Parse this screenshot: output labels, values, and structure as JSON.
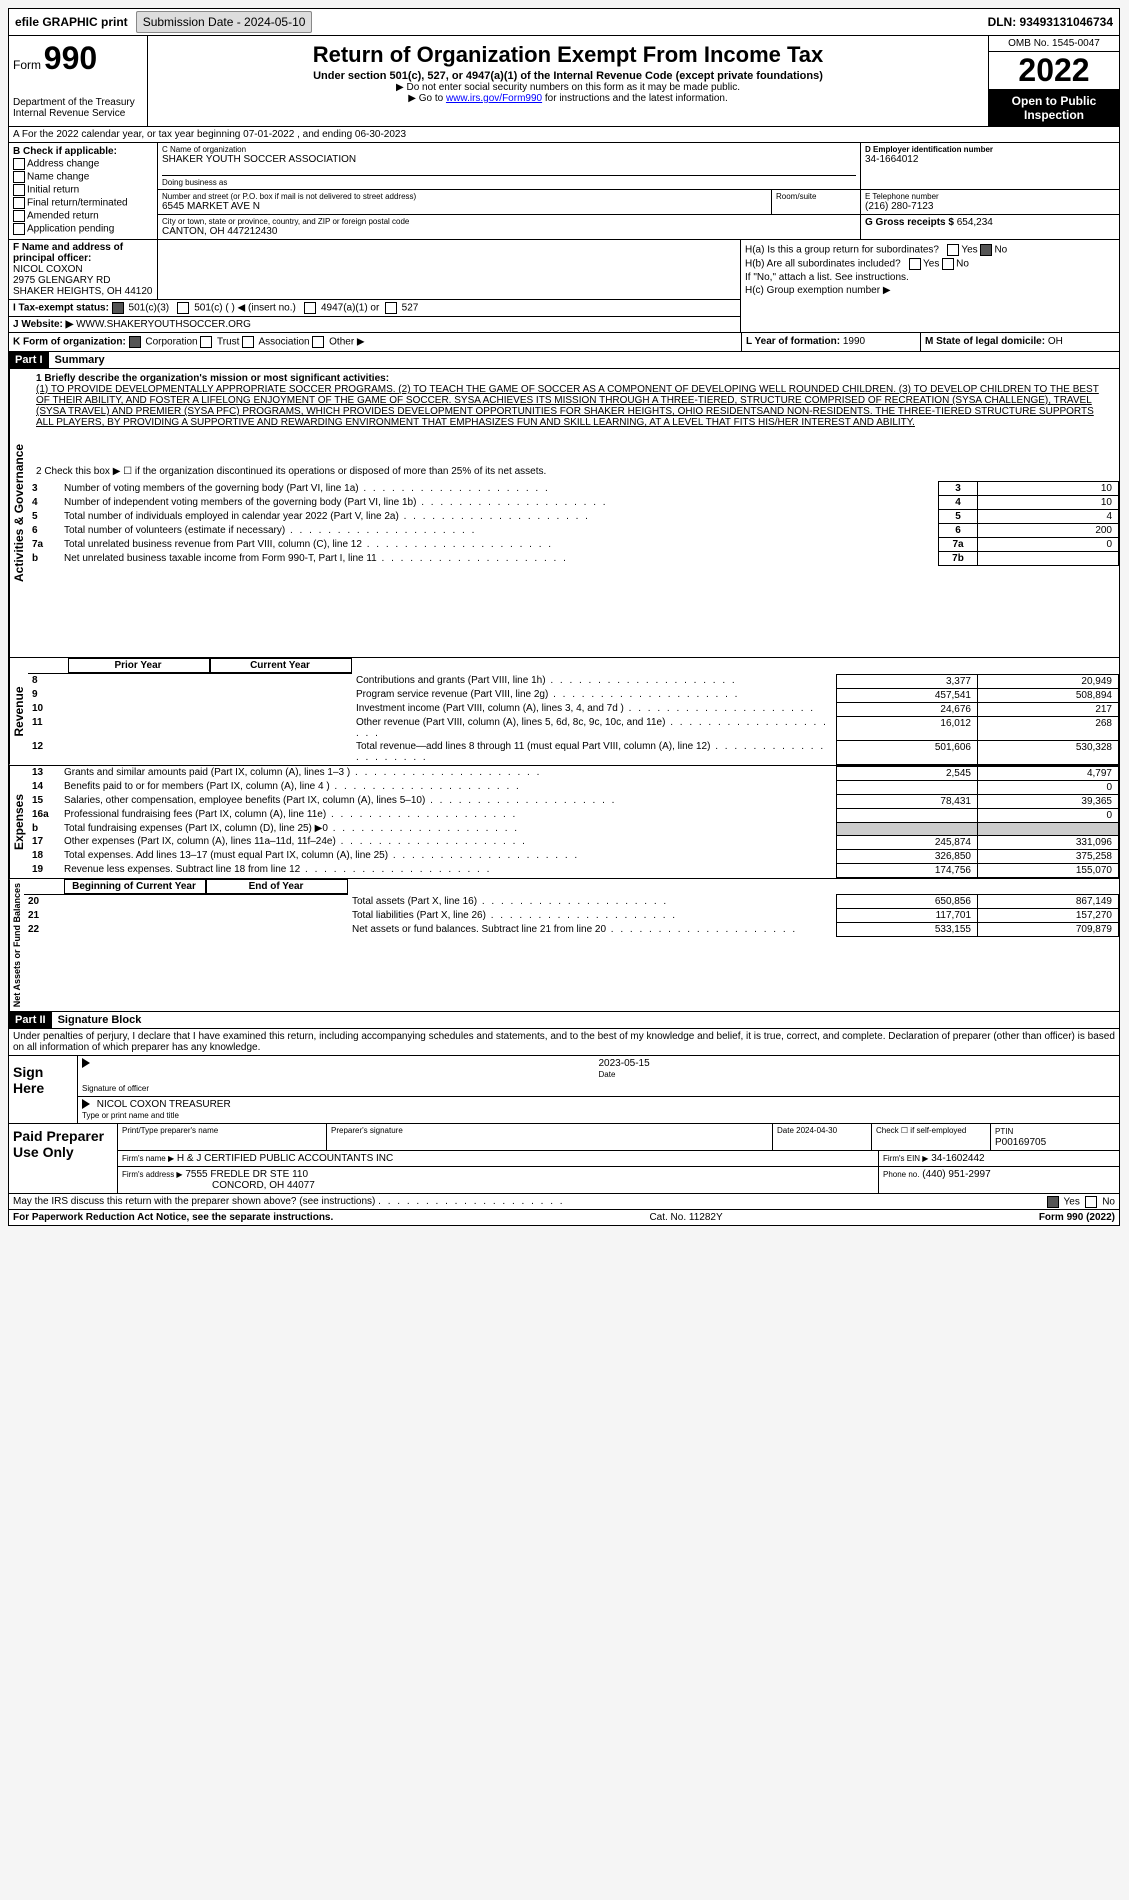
{
  "topbar": {
    "efile": "efile GRAPHIC print",
    "sub_label": "Submission Date - 2024-05-10",
    "dln": "DLN: 93493131046734"
  },
  "header": {
    "form_word": "Form",
    "form_no": "990",
    "dept": "Department of the Treasury Internal Revenue Service",
    "title": "Return of Organization Exempt From Income Tax",
    "subtitle": "Under section 501(c), 527, or 4947(a)(1) of the Internal Revenue Code (except private foundations)",
    "note1": "▶ Do not enter social security numbers on this form as it may be made public.",
    "note2_pre": "▶ Go to ",
    "note2_link": "www.irs.gov/Form990",
    "note2_post": " for instructions and the latest information.",
    "omb": "OMB No. 1545-0047",
    "year": "2022",
    "inspect": "Open to Public Inspection"
  },
  "row_a": "A For the 2022 calendar year, or tax year beginning 07-01-2022   , and ending 06-30-2023",
  "box_b": {
    "label": "B Check if applicable:",
    "items": [
      "Address change",
      "Name change",
      "Initial return",
      "Final return/terminated",
      "Amended return",
      "Application pending"
    ]
  },
  "box_c": {
    "name_label": "C Name of organization",
    "name": "SHAKER YOUTH SOCCER ASSOCIATION",
    "dba_label": "Doing business as",
    "dba": "",
    "addr_label": "Number and street (or P.O. box if mail is not delivered to street address)",
    "addr": "6545 MARKET AVE N",
    "room_label": "Room/suite",
    "city_label": "City or town, state or province, country, and ZIP or foreign postal code",
    "city": "CANTON, OH  447212430"
  },
  "box_d": {
    "label": "D Employer identification number",
    "val": "34-1664012"
  },
  "box_e": {
    "label": "E Telephone number",
    "val": "(216) 280-7123"
  },
  "box_g": {
    "label": "G Gross receipts $",
    "val": "654,234"
  },
  "box_f": {
    "label": "F  Name and address of principal officer:",
    "name": "NICOL COXON",
    "addr1": "2975 GLENGARY RD",
    "addr2": "SHAKER HEIGHTS, OH  44120"
  },
  "box_h": {
    "ha": "H(a)  Is this a group return for subordinates?",
    "hb": "H(b)  Are all subordinates included?",
    "hb_note": "If \"No,\" attach a list. See instructions.",
    "hc": "H(c)  Group exemption number ▶",
    "yes": "Yes",
    "no": "No"
  },
  "box_i": {
    "label": "I  Tax-exempt status:",
    "opts": [
      "501(c)(3)",
      "501(c) (  ) ◀ (insert no.)",
      "4947(a)(1) or",
      "527"
    ]
  },
  "box_j": {
    "label": "J  Website: ▶",
    "val": " WWW.SHAKERYOUTHSOCCER.ORG"
  },
  "box_k": {
    "label": "K Form of organization:",
    "opts": [
      "Corporation",
      "Trust",
      "Association",
      "Other ▶"
    ]
  },
  "box_l": {
    "label": "L Year of formation:",
    "val": "1990"
  },
  "box_m": {
    "label": "M State of legal domicile:",
    "val": "OH"
  },
  "part1": {
    "tag": "Part I",
    "title": "Summary",
    "side1": "Activities & Governance",
    "side2": "Revenue",
    "side3": "Expenses",
    "side4": "Net Assets or Fund Balances",
    "line1": "1   Briefly describe the organization's mission or most significant activities:",
    "mission": "(1) TO PROVIDE DEVELOPMENTALLY APPROPRIATE SOCCER PROGRAMS. (2) TO TEACH THE GAME OF SOCCER AS A COMPONENT OF DEVELOPING WELL ROUNDED CHILDREN. (3) TO DEVELOP CHILDREN TO THE BEST OF THEIR ABILITY, AND FOSTER A LIFELONG ENJOYMENT OF THE GAME OF SOCCER. SYSA ACHIEVES ITS MISSION THROUGH A THREE-TIERED, STRUCTURE COMPRISED OF RECREATION (SYSA CHALLENGE), TRAVEL (SYSA TRAVEL) AND PREMIER (SYSA PFC) PROGRAMS, WHICH PROVIDES DEVELOPMENT OPPORTUNITIES FOR SHAKER HEIGHTS, OHIO RESIDENTSAND NON-RESIDENTS. THE THREE-TIERED STRUCTURE SUPPORTS ALL PLAYERS, BY PROVIDING A SUPPORTIVE AND REWARDING ENVIRONMENT THAT EMPHASIZES FUN AND SKILL LEARNING, AT A LEVEL THAT FITS HIS/HER INTEREST AND ABILITY.",
    "line2": "2   Check this box ▶ ☐ if the organization discontinued its operations or disposed of more than 25% of its net assets.",
    "gov_rows": [
      {
        "n": "3",
        "desc": "Number of voting members of the governing body (Part VI, line 1a)",
        "box": "3",
        "val": "10"
      },
      {
        "n": "4",
        "desc": "Number of independent voting members of the governing body (Part VI, line 1b)",
        "box": "4",
        "val": "10"
      },
      {
        "n": "5",
        "desc": "Total number of individuals employed in calendar year 2022 (Part V, line 2a)",
        "box": "5",
        "val": "4"
      },
      {
        "n": "6",
        "desc": "Total number of volunteers (estimate if necessary)",
        "box": "6",
        "val": "200"
      },
      {
        "n": "7a",
        "desc": "Total unrelated business revenue from Part VIII, column (C), line 12",
        "box": "7a",
        "val": "0"
      },
      {
        "n": "b",
        "desc": "Net unrelated business taxable income from Form 990-T, Part I, line 11",
        "box": "7b",
        "val": ""
      }
    ],
    "col_prior": "Prior Year",
    "col_curr": "Current Year",
    "rev_rows": [
      {
        "n": "8",
        "desc": "Contributions and grants (Part VIII, line 1h)",
        "p": "3,377",
        "c": "20,949"
      },
      {
        "n": "9",
        "desc": "Program service revenue (Part VIII, line 2g)",
        "p": "457,541",
        "c": "508,894"
      },
      {
        "n": "10",
        "desc": "Investment income (Part VIII, column (A), lines 3, 4, and 7d )",
        "p": "24,676",
        "c": "217"
      },
      {
        "n": "11",
        "desc": "Other revenue (Part VIII, column (A), lines 5, 6d, 8c, 9c, 10c, and 11e)",
        "p": "16,012",
        "c": "268"
      },
      {
        "n": "12",
        "desc": "Total revenue—add lines 8 through 11 (must equal Part VIII, column (A), line 12)",
        "p": "501,606",
        "c": "530,328"
      }
    ],
    "exp_rows": [
      {
        "n": "13",
        "desc": "Grants and similar amounts paid (Part IX, column (A), lines 1–3 )",
        "p": "2,545",
        "c": "4,797"
      },
      {
        "n": "14",
        "desc": "Benefits paid to or for members (Part IX, column (A), line 4 )",
        "p": "",
        "c": "0"
      },
      {
        "n": "15",
        "desc": "Salaries, other compensation, employee benefits (Part IX, column (A), lines 5–10)",
        "p": "78,431",
        "c": "39,365"
      },
      {
        "n": "16a",
        "desc": "Professional fundraising fees (Part IX, column (A), line 11e)",
        "p": "",
        "c": "0"
      },
      {
        "n": "b",
        "desc": "Total fundraising expenses (Part IX, column (D), line 25) ▶0",
        "p": "gray",
        "c": "gray"
      },
      {
        "n": "17",
        "desc": "Other expenses (Part IX, column (A), lines 11a–11d, 11f–24e)",
        "p": "245,874",
        "c": "331,096"
      },
      {
        "n": "18",
        "desc": "Total expenses. Add lines 13–17 (must equal Part IX, column (A), line 25)",
        "p": "326,850",
        "c": "375,258"
      },
      {
        "n": "19",
        "desc": "Revenue less expenses. Subtract line 18 from line 12",
        "p": "174,756",
        "c": "155,070"
      }
    ],
    "col_begin": "Beginning of Current Year",
    "col_end": "End of Year",
    "net_rows": [
      {
        "n": "20",
        "desc": "Total assets (Part X, line 16)",
        "p": "650,856",
        "c": "867,149"
      },
      {
        "n": "21",
        "desc": "Total liabilities (Part X, line 26)",
        "p": "117,701",
        "c": "157,270"
      },
      {
        "n": "22",
        "desc": "Net assets or fund balances. Subtract line 21 from line 20",
        "p": "533,155",
        "c": "709,879"
      }
    ]
  },
  "part2": {
    "tag": "Part II",
    "title": "Signature Block",
    "declaration": "Under penalties of perjury, I declare that I have examined this return, including accompanying schedules and statements, and to the best of my knowledge and belief, it is true, correct, and complete. Declaration of preparer (other than officer) is based on all information of which preparer has any knowledge.",
    "sign_here": "Sign Here",
    "sig_officer": "Signature of officer",
    "sig_date": "2023-05-15",
    "date_label": "Date",
    "officer": "NICOL COXON  TREASURER",
    "type_label": "Type or print name and title",
    "paid": "Paid Preparer Use Only",
    "prep_name_label": "Print/Type preparer's name",
    "prep_sig_label": "Preparer's signature",
    "prep_date": "Date 2024-04-30",
    "self_emp": "Check ☐ if self-employed",
    "ptin_label": "PTIN",
    "ptin": "P00169705",
    "firm_name_label": "Firm's name    ▶",
    "firm_name": "H & J CERTIFIED PUBLIC ACCOUNTANTS INC",
    "firm_ein_label": "Firm's EIN ▶",
    "firm_ein": "34-1602442",
    "firm_addr_label": "Firm's address ▶",
    "firm_addr": "7555 FREDLE DR STE 110",
    "firm_city": "CONCORD, OH  44077",
    "phone_label": "Phone no.",
    "phone": "(440) 951-2997",
    "discuss": "May the IRS discuss this return with the preparer shown above? (see instructions)",
    "yes": "Yes",
    "no": "No"
  },
  "footer": {
    "pra": "For Paperwork Reduction Act Notice, see the separate instructions.",
    "cat": "Cat. No. 11282Y",
    "form": "Form 990 (2022)"
  }
}
